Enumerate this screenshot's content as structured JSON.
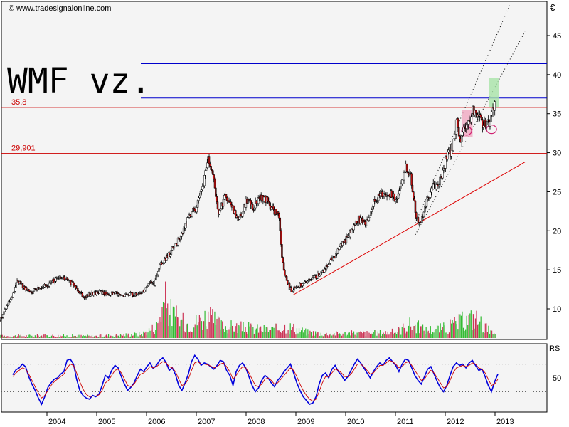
{
  "watermark": "© www.tradesignalonline.com",
  "chart_data": [
    {
      "type": "candlestick",
      "title": "WMF vz.",
      "currency_label": "€",
      "ylim": [
        6,
        49
      ],
      "y_ticks": [
        10,
        15,
        20,
        25,
        30,
        35,
        40,
        45
      ],
      "x_labels": [
        "2004",
        "2005",
        "2006",
        "2007",
        "2008",
        "2009",
        "2010",
        "2011",
        "2012",
        "2013"
      ],
      "x_range": [
        2003.05,
        2013.6
      ],
      "horizontal_lines": [
        {
          "label": "35,8",
          "value": 35.8,
          "color": "#cc0000"
        },
        {
          "label": "29,901",
          "value": 29.901,
          "color": "#cc0000"
        },
        {
          "label": "",
          "value": 41.4,
          "color": "#0000cc"
        },
        {
          "label": "",
          "value": 37.0,
          "color": "#0000cc"
        }
      ],
      "trendline": {
        "color": "#dd0000",
        "from": [
          2008.95,
          11.8
        ],
        "to": [
          2013.6,
          28.8
        ]
      },
      "channel_lines": [
        {
          "from": [
            2011.4,
            21.0
          ],
          "to": [
            2013.3,
            49.0
          ]
        },
        {
          "from": [
            2011.4,
            19.5
          ],
          "to": [
            2013.6,
            45.5
          ]
        }
      ],
      "price_path": [
        [
          2003.05,
          8.5
        ],
        [
          2003.15,
          10.0
        ],
        [
          2003.3,
          11.5
        ],
        [
          2003.4,
          13.8
        ],
        [
          2003.55,
          12.5
        ],
        [
          2003.7,
          12.2
        ],
        [
          2003.85,
          12.8
        ],
        [
          2004.0,
          13.0
        ],
        [
          2004.15,
          13.7
        ],
        [
          2004.3,
          14.0
        ],
        [
          2004.45,
          13.5
        ],
        [
          2004.6,
          12.6
        ],
        [
          2004.75,
          11.5
        ],
        [
          2004.9,
          12.0
        ],
        [
          2005.05,
          12.2
        ],
        [
          2005.2,
          11.9
        ],
        [
          2005.35,
          12.0
        ],
        [
          2005.5,
          11.6
        ],
        [
          2005.65,
          12.0
        ],
        [
          2005.8,
          11.7
        ],
        [
          2005.95,
          12.5
        ],
        [
          2006.05,
          13.5
        ],
        [
          2006.15,
          13.2
        ],
        [
          2006.25,
          15.5
        ],
        [
          2006.4,
          16.5
        ],
        [
          2006.55,
          18.0
        ],
        [
          2006.7,
          19.5
        ],
        [
          2006.85,
          22.0
        ],
        [
          2007.0,
          23.0
        ],
        [
          2007.12,
          25.5
        ],
        [
          2007.22,
          29.3
        ],
        [
          2007.32,
          27.0
        ],
        [
          2007.45,
          22.0
        ],
        [
          2007.55,
          24.5
        ],
        [
          2007.7,
          23.0
        ],
        [
          2007.85,
          21.5
        ],
        [
          2008.0,
          24.0
        ],
        [
          2008.15,
          23.0
        ],
        [
          2008.3,
          24.5
        ],
        [
          2008.45,
          23.5
        ],
        [
          2008.55,
          22.5
        ],
        [
          2008.65,
          22.0
        ],
        [
          2008.72,
          16.0
        ],
        [
          2008.8,
          13.5
        ],
        [
          2008.9,
          12.3
        ],
        [
          2009.05,
          13.0
        ],
        [
          2009.2,
          13.4
        ],
        [
          2009.35,
          14.0
        ],
        [
          2009.5,
          14.5
        ],
        [
          2009.65,
          16.0
        ],
        [
          2009.8,
          17.0
        ],
        [
          2009.95,
          18.5
        ],
        [
          2010.1,
          20.0
        ],
        [
          2010.25,
          21.5
        ],
        [
          2010.4,
          21.0
        ],
        [
          2010.55,
          23.5
        ],
        [
          2010.7,
          24.5
        ],
        [
          2010.85,
          25.0
        ],
        [
          2011.0,
          24.0
        ],
        [
          2011.1,
          25.5
        ],
        [
          2011.2,
          28.5
        ],
        [
          2011.3,
          27.0
        ],
        [
          2011.4,
          22.0
        ],
        [
          2011.48,
          20.8
        ],
        [
          2011.58,
          23.0
        ],
        [
          2011.7,
          25.0
        ],
        [
          2011.8,
          26.0
        ],
        [
          2011.9,
          26.5
        ],
        [
          2012.0,
          29.0
        ],
        [
          2012.12,
          30.5
        ],
        [
          2012.22,
          34.0
        ],
        [
          2012.3,
          31.5
        ],
        [
          2012.38,
          33.0
        ],
        [
          2012.48,
          34.5
        ],
        [
          2012.58,
          35.5
        ],
        [
          2012.68,
          34.5
        ],
        [
          2012.78,
          33.5
        ],
        [
          2012.88,
          34.0
        ],
        [
          2012.95,
          35.2
        ],
        [
          2013.0,
          36.3
        ]
      ],
      "volume_path": [
        [
          2003.05,
          0.05
        ],
        [
          2004.0,
          0.06
        ],
        [
          2005.0,
          0.05
        ],
        [
          2005.9,
          0.1
        ],
        [
          2006.2,
          0.3
        ],
        [
          2006.35,
          0.95
        ],
        [
          2006.5,
          0.6
        ],
        [
          2006.7,
          0.4
        ],
        [
          2006.9,
          0.35
        ],
        [
          2007.2,
          0.55
        ],
        [
          2007.5,
          0.3
        ],
        [
          2008.0,
          0.25
        ],
        [
          2008.5,
          0.2
        ],
        [
          2008.8,
          0.3
        ],
        [
          2009.2,
          0.15
        ],
        [
          2009.6,
          0.1
        ],
        [
          2010.0,
          0.12
        ],
        [
          2010.5,
          0.12
        ],
        [
          2011.0,
          0.15
        ],
        [
          2011.3,
          0.35
        ],
        [
          2011.6,
          0.2
        ],
        [
          2012.0,
          0.25
        ],
        [
          2012.3,
          0.4
        ],
        [
          2012.6,
          0.5
        ],
        [
          2012.9,
          0.15
        ],
        [
          2013.0,
          0.05
        ]
      ],
      "annotations": [
        {
          "kind": "box",
          "color": "#f0a8c0",
          "x": [
            2012.33,
            2012.55
          ],
          "y": [
            32.0,
            35.5
          ]
        },
        {
          "kind": "box",
          "color": "#a8e4a8",
          "x": [
            2012.88,
            2013.08
          ],
          "y": [
            35.8,
            39.6
          ]
        },
        {
          "kind": "circle",
          "color": "#d02070",
          "x": 2012.43,
          "y": 32.8
        },
        {
          "kind": "circle",
          "color": "#d02070",
          "x": 2012.93,
          "y": 33.0
        }
      ]
    },
    {
      "type": "line",
      "indicator_label": "RS",
      "y_ticks": [
        50
      ],
      "ylim": [
        0,
        100
      ],
      "reference_lines": [
        72,
        28
      ],
      "series": [
        {
          "color": "#0000dd",
          "values": [
            55,
            63,
            66,
            72,
            68,
            52,
            40,
            30,
            18,
            8,
            20,
            35,
            42,
            48,
            50,
            56,
            60,
            78,
            80,
            72,
            48,
            30,
            22,
            18,
            16,
            22,
            20,
            24,
            38,
            54,
            50,
            62,
            70,
            66,
            52,
            40,
            30,
            35,
            42,
            54,
            64,
            60,
            68,
            74,
            65,
            70,
            78,
            82,
            75,
            62,
            66,
            55,
            38,
            30,
            42,
            56,
            76,
            86,
            80,
            70,
            74,
            72,
            68,
            64,
            70,
            78,
            76,
            62,
            54,
            38,
            60,
            70,
            74,
            66,
            52,
            38,
            28,
            34,
            46,
            54,
            50,
            42,
            36,
            46,
            52,
            60,
            66,
            72,
            58,
            42,
            30,
            20,
            14,
            8,
            10,
            20,
            40,
            54,
            58,
            50,
            64,
            70,
            60,
            54,
            46,
            52,
            62,
            72,
            80,
            74,
            66,
            58,
            50,
            60,
            68,
            74,
            70,
            78,
            82,
            76,
            70,
            60,
            72,
            80,
            78,
            66,
            54,
            46,
            40,
            52,
            64,
            68,
            56,
            44,
            34,
            28,
            38,
            54,
            68,
            74,
            70,
            72,
            66,
            74,
            78,
            70,
            62,
            64,
            52,
            38,
            28,
            44,
            56
          ]
        },
        {
          "color": "#cc0000",
          "values": [
            52,
            58,
            62,
            66,
            64,
            56,
            46,
            36,
            26,
            18,
            22,
            30,
            38,
            44,
            48,
            52,
            56,
            66,
            72,
            70,
            58,
            44,
            32,
            24,
            20,
            21,
            21,
            23,
            30,
            42,
            46,
            54,
            62,
            64,
            58,
            48,
            38,
            36,
            40,
            48,
            56,
            58,
            62,
            68,
            66,
            68,
            72,
            76,
            74,
            68,
            66,
            60,
            48,
            38,
            40,
            48,
            62,
            74,
            76,
            72,
            72,
            71,
            69,
            66,
            68,
            72,
            74,
            68,
            60,
            48,
            54,
            62,
            68,
            66,
            58,
            48,
            38,
            36,
            40,
            48,
            50,
            46,
            40,
            42,
            48,
            54,
            60,
            66,
            62,
            52,
            40,
            30,
            22,
            16,
            13,
            16,
            28,
            42,
            52,
            52,
            58,
            64,
            62,
            58,
            52,
            52,
            56,
            64,
            72,
            72,
            68,
            62,
            56,
            58,
            64,
            70,
            70,
            74,
            78,
            76,
            72,
            66,
            68,
            74,
            76,
            70,
            62,
            54,
            46,
            48,
            56,
            62,
            58,
            50,
            42,
            34,
            36,
            46,
            58,
            66,
            68,
            70,
            68,
            70,
            74,
            72,
            66,
            64,
            58,
            48,
            38,
            40,
            48
          ]
        }
      ]
    }
  ]
}
